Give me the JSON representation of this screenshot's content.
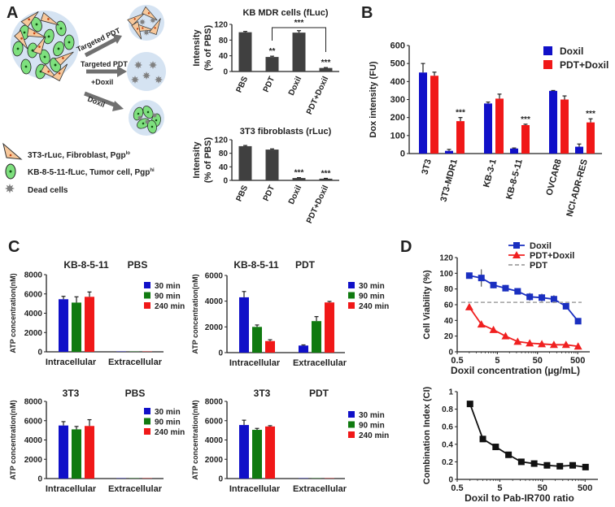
{
  "panel_labels": [
    "A",
    "B",
    "C",
    "D"
  ],
  "schematic": {
    "arrow_labels": [
      "Targeted PDT",
      "Targeted PDT",
      "+Doxil",
      "Doxil"
    ],
    "legend": [
      {
        "text": "3T3-rLuc, Fibroblast, Pgp",
        "sup": "lo",
        "icon": "fibroblast-triangle",
        "color": "#f7c89b"
      },
      {
        "text": "KB-8-5-11-fLuc, Tumor cell, Pgp",
        "sup": "hi",
        "icon": "tumor-cell-ellipse",
        "color": "#7ee07e"
      },
      {
        "text": "Dead cells",
        "sup": "",
        "icon": "dead-cell-star",
        "color": "#808080"
      }
    ],
    "colors": {
      "background_circle": "#d5e3f2",
      "arrow": "#707070"
    }
  },
  "chart_data": [
    {
      "id": "A_kb",
      "type": "bar",
      "title": "KB MDR cells (fLuc)",
      "ylabel": [
        "Intensity",
        "(% of PBS)"
      ],
      "ylim": [
        0,
        120
      ],
      "yticks": [
        0,
        40,
        80,
        120
      ],
      "categories": [
        "PBS",
        "PDT",
        "Doxil",
        "PDT+Doxil"
      ],
      "series": [
        {
          "color": "#404040",
          "values": [
            100,
            37,
            99,
            9
          ],
          "errors": [
            2,
            2,
            5,
            1
          ],
          "stars": [
            "",
            "**",
            "",
            "***"
          ]
        }
      ],
      "bracket": {
        "from": 1,
        "to": 3,
        "label": "***"
      }
    },
    {
      "id": "A_3t3",
      "type": "bar",
      "title": "3T3 fibroblasts (rLuc)",
      "ylabel": [
        "Intensity",
        "(% of PBS)"
      ],
      "ylim": [
        0,
        120
      ],
      "yticks": [
        0,
        40,
        80,
        120
      ],
      "categories": [
        "PBS",
        "PDT",
        "Doxil",
        "PDT+Doxil"
      ],
      "series": [
        {
          "color": "#404040",
          "values": [
            101,
            91,
            7,
            5
          ],
          "errors": [
            2,
            2,
            1,
            1
          ],
          "stars": [
            "",
            "",
            "***",
            "***"
          ]
        }
      ]
    },
    {
      "id": "B",
      "type": "bar",
      "title": "",
      "ylabel": [
        "Dox intensity (FU)"
      ],
      "ylim": [
        0,
        600
      ],
      "yticks": [
        0,
        100,
        200,
        300,
        400,
        500,
        600
      ],
      "categories": [
        "3T3",
        "3T3-MDR1",
        "KB-3-1",
        "KB-8-5-11",
        "OVCAR8",
        "NCI-ADR-RES"
      ],
      "series": [
        {
          "name": "Doxil",
          "color": "#1010c8",
          "values": [
            450,
            15,
            278,
            28,
            348,
            38
          ],
          "errors": [
            50,
            8,
            8,
            3,
            2,
            15
          ],
          "stars": [
            "",
            "",
            "",
            "",
            "",
            ""
          ]
        },
        {
          "name": "PDT+Doxil",
          "color": "#f01818",
          "values": [
            432,
            180,
            305,
            158,
            300,
            173
          ],
          "errors": [
            20,
            20,
            25,
            5,
            20,
            20
          ],
          "stars": [
            "",
            "***",
            "",
            "***",
            "",
            "***"
          ]
        }
      ],
      "legend": "top-right"
    },
    {
      "id": "C_kb_pbs",
      "type": "bar",
      "title": [
        "KB-8-5-11",
        "PBS"
      ],
      "ylabel": [
        "ATP concentration(nM)"
      ],
      "ylim": [
        0,
        8000
      ],
      "yticks": [
        0,
        2000,
        4000,
        6000,
        8000
      ],
      "categories": [
        "Intracellular",
        "Extracellular"
      ],
      "series": [
        {
          "name": "30 min",
          "color": "#1010c8",
          "values": [
            5450,
            30
          ],
          "errors": [
            300,
            0
          ]
        },
        {
          "name": "90 min",
          "color": "#107a10",
          "values": [
            5100,
            30
          ],
          "errors": [
            600,
            0
          ]
        },
        {
          "name": "240 min",
          "color": "#f01818",
          "values": [
            5700,
            30
          ],
          "errors": [
            500,
            0
          ]
        }
      ],
      "legend": "top-right"
    },
    {
      "id": "C_kb_pdt",
      "type": "bar",
      "title": [
        "KB-8-5-11",
        "PDT"
      ],
      "ylabel": [
        "ATP concentration(nM)"
      ],
      "ylim": [
        0,
        6000
      ],
      "yticks": [
        0,
        2000,
        4000,
        6000
      ],
      "categories": [
        "Intracellular",
        "Extracellular"
      ],
      "series": [
        {
          "name": "30 min",
          "color": "#1010c8",
          "values": [
            4300,
            550
          ],
          "errors": [
            450,
            50
          ]
        },
        {
          "name": "90 min",
          "color": "#107a10",
          "values": [
            2000,
            2450
          ],
          "errors": [
            150,
            350
          ]
        },
        {
          "name": "240 min",
          "color": "#f01818",
          "values": [
            900,
            3900
          ],
          "errors": [
            100,
            80
          ]
        }
      ],
      "legend": "top-right"
    },
    {
      "id": "C_3t3_pbs",
      "type": "bar",
      "title": [
        "3T3",
        "PBS"
      ],
      "ylabel": [
        "ATP concentration(nM)"
      ],
      "ylim": [
        0,
        8000
      ],
      "yticks": [
        0,
        2000,
        4000,
        6000,
        8000
      ],
      "categories": [
        "Intracellular",
        "Extracellular"
      ],
      "series": [
        {
          "name": "30 min",
          "color": "#1010c8",
          "values": [
            5500,
            30
          ],
          "errors": [
            400,
            0
          ]
        },
        {
          "name": "90 min",
          "color": "#107a10",
          "values": [
            5100,
            30
          ],
          "errors": [
            300,
            0
          ]
        },
        {
          "name": "240 min",
          "color": "#f01818",
          "values": [
            5450,
            30
          ],
          "errors": [
            650,
            0
          ]
        }
      ],
      "legend": "top-right"
    },
    {
      "id": "C_3t3_pdt",
      "type": "bar",
      "title": [
        "3T3",
        "PDT"
      ],
      "ylabel": [
        "ATP concentration(nM)"
      ],
      "ylim": [
        0,
        8000
      ],
      "yticks": [
        0,
        2000,
        4000,
        6000,
        8000
      ],
      "categories": [
        "Intracellular",
        "Extracellular"
      ],
      "series": [
        {
          "name": "30 min",
          "color": "#1010c8",
          "values": [
            5550,
            30
          ],
          "errors": [
            500,
            0
          ]
        },
        {
          "name": "90 min",
          "color": "#107a10",
          "values": [
            5050,
            30
          ],
          "errors": [
            150,
            0
          ]
        },
        {
          "name": "240 min",
          "color": "#f01818",
          "values": [
            5400,
            30
          ],
          "errors": [
            80,
            0
          ]
        }
      ],
      "legend": "top-right"
    },
    {
      "id": "D_viability",
      "type": "line",
      "xscale": "log",
      "xlabel": "Doxil concentration (µg/mL)",
      "ylabel": [
        "Cell Viability (%)"
      ],
      "xlim": [
        0.5,
        1000
      ],
      "xticks": [
        0.5,
        5,
        50,
        500
      ],
      "ylim": [
        0,
        120
      ],
      "yticks": [
        0,
        20,
        40,
        60,
        80,
        100,
        120
      ],
      "x": [
        1,
        2,
        4,
        8,
        16,
        32,
        64,
        128,
        256,
        512
      ],
      "series": [
        {
          "name": "Doxil",
          "color": "#1a2fc0",
          "marker": "square",
          "values": [
            97,
            94,
            85,
            81,
            77,
            70,
            69,
            67,
            58,
            39
          ],
          "errors": [
            2,
            11,
            4,
            4,
            2,
            5,
            5,
            5,
            2,
            2
          ]
        },
        {
          "name": "PDT+Doxil",
          "color": "#f02020",
          "marker": "triangle",
          "values": [
            57,
            35,
            28,
            20,
            13,
            11,
            10,
            9,
            9,
            7
          ],
          "errors": [
            0,
            0,
            0,
            0,
            0,
            0,
            0,
            0,
            0,
            0
          ]
        },
        {
          "name": "PDT",
          "color": "#a0a0a0",
          "marker": "none",
          "dashed": true,
          "constant": 63
        }
      ],
      "legend": "top-right"
    },
    {
      "id": "D_ci",
      "type": "line",
      "xscale": "log",
      "xlabel": "Doxil to Pab-IR700 ratio",
      "ylabel": [
        "Combination Index (CI)"
      ],
      "xlim": [
        0.5,
        1000
      ],
      "xticks": [
        0.5,
        5,
        50,
        500
      ],
      "ylim": [
        0,
        1
      ],
      "yticks": [
        0,
        0.2,
        0.4,
        0.6,
        0.8,
        1
      ],
      "x": [
        1,
        2,
        4,
        8,
        16,
        32,
        64,
        128,
        256,
        512
      ],
      "series": [
        {
          "color": "#111111",
          "marker": "square",
          "values": [
            0.86,
            0.46,
            0.37,
            0.28,
            0.2,
            0.18,
            0.16,
            0.15,
            0.16,
            0.14
          ]
        }
      ]
    }
  ]
}
